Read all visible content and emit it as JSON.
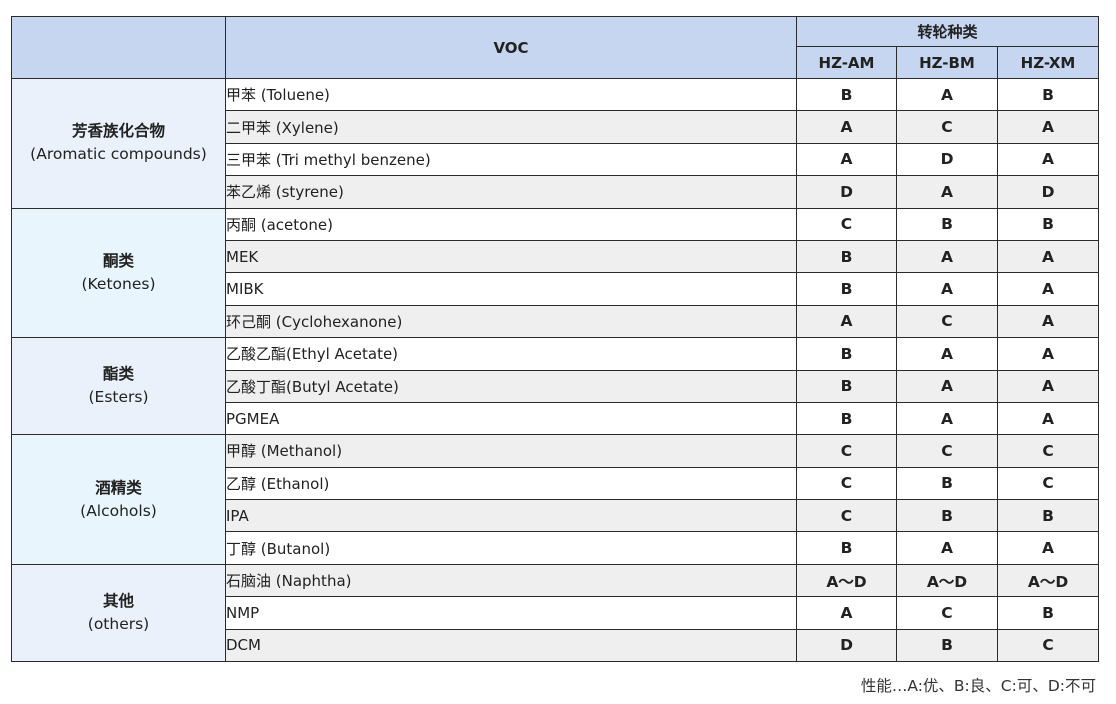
{
  "header": {
    "voc_label": "VOC",
    "rotor_types_label": "转轮种类",
    "columns": [
      "HZ-AM",
      "HZ-BM",
      "HZ-XM"
    ]
  },
  "groups": [
    {
      "name_cn": "芳香族化合物",
      "name_en": "(Aromatic compounds)",
      "rows": [
        {
          "name": "甲苯 (Toluene)",
          "values": [
            "B",
            "A",
            "B"
          ]
        },
        {
          "name": "二甲苯 (Xylene)",
          "values": [
            "A",
            "C",
            "A"
          ]
        },
        {
          "name": "三甲苯 (Tri methyl benzene)",
          "values": [
            "A",
            "D",
            "A"
          ]
        },
        {
          "name": "苯乙烯 (styrene)",
          "values": [
            "D",
            "A",
            "D"
          ]
        }
      ]
    },
    {
      "name_cn": "酮类",
      "name_en": "(Ketones)",
      "rows": [
        {
          "name": "丙酮 (acetone)",
          "values": [
            "C",
            "B",
            "B"
          ]
        },
        {
          "name": "MEK",
          "values": [
            "B",
            "A",
            "A"
          ]
        },
        {
          "name": "MIBK",
          "values": [
            "B",
            "A",
            "A"
          ]
        },
        {
          "name": "环己酮 (Cyclohexanone)",
          "values": [
            "A",
            "C",
            "A"
          ]
        }
      ]
    },
    {
      "name_cn": "酯类",
      "name_en": "(Esters)",
      "rows": [
        {
          "name": "乙酸乙酯(Ethyl Acetate)",
          "values": [
            "B",
            "A",
            "A"
          ]
        },
        {
          "name": "乙酸丁酯(Butyl Acetate)",
          "values": [
            "B",
            "A",
            "A"
          ]
        },
        {
          "name": "PGMEA",
          "values": [
            "B",
            "A",
            "A"
          ]
        }
      ]
    },
    {
      "name_cn": "酒精类",
      "name_en": "(Alcohols)",
      "rows": [
        {
          "name": "甲醇 (Methanol)",
          "values": [
            "C",
            "C",
            "C"
          ]
        },
        {
          "name": "乙醇 (Ethanol)",
          "values": [
            "C",
            "B",
            "C"
          ]
        },
        {
          "name": "IPA",
          "values": [
            "C",
            "B",
            "B"
          ]
        },
        {
          "name": "丁醇 (Butanol)",
          "values": [
            "B",
            "A",
            "A"
          ]
        }
      ]
    },
    {
      "name_cn": "其他",
      "name_en": "(others)",
      "rows": [
        {
          "name": "石脑油 (Naphtha)",
          "values": [
            "A～D",
            "A～D",
            "A～D"
          ]
        },
        {
          "name": "NMP",
          "values": [
            "A",
            "C",
            "B"
          ]
        },
        {
          "name": "DCM",
          "values": [
            "D",
            "B",
            "C"
          ]
        }
      ]
    }
  ],
  "footnote": "性能…A:优、B:良、C:可、D:不可",
  "colors": {
    "header_bg": "#c6d6f0",
    "category_bg_a": "#eaf1fa",
    "category_bg_b": "#e9f5fc",
    "row_alt_bg": "#efefef"
  }
}
